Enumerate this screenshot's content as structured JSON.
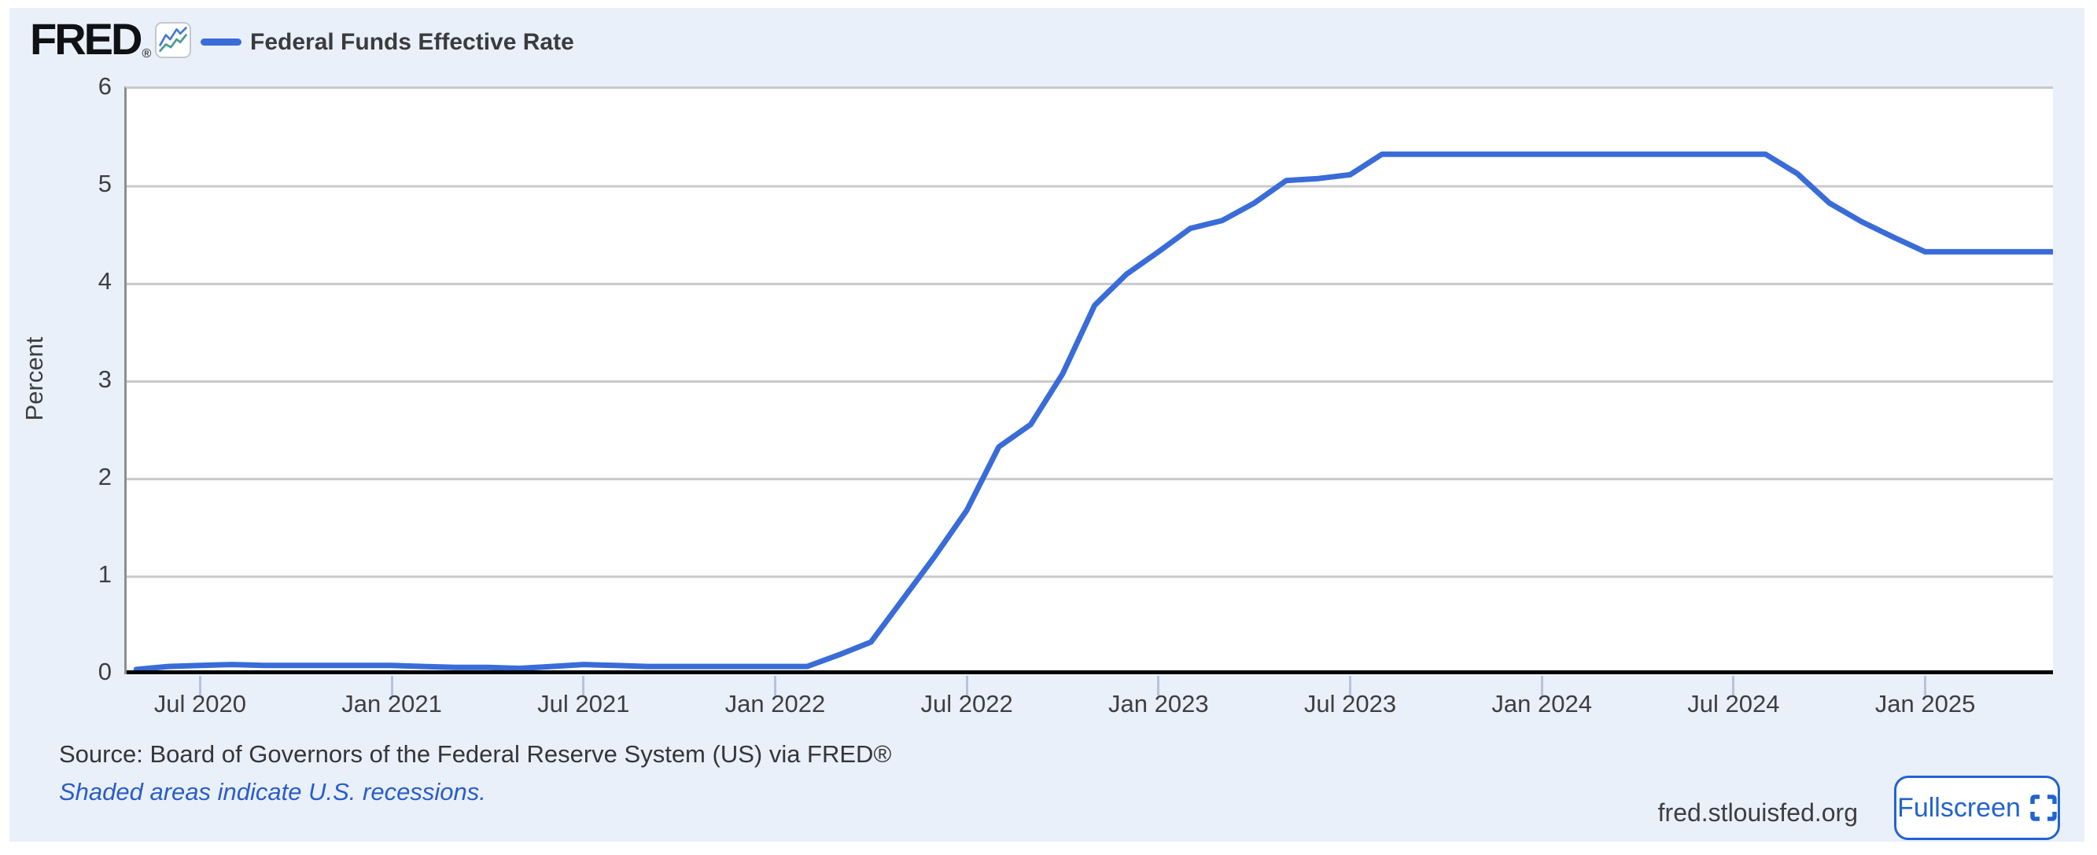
{
  "header": {
    "brand": "FRED",
    "brand_registered_mark": "®",
    "legend": {
      "series_label": "Federal Funds Effective Rate",
      "swatch_color": "#3a6cd8"
    },
    "fred_icon": {
      "blue": "#4a79d4",
      "teal": "#4d9b8f"
    }
  },
  "chart_data": {
    "type": "line",
    "title": "Federal Funds Effective Rate",
    "xlabel": "",
    "ylabel": "Percent",
    "ylim": [
      0,
      6
    ],
    "y_ticks": [
      0,
      1,
      2,
      3,
      4,
      5,
      6
    ],
    "grid": "horizontal",
    "legend_position": "top-left",
    "x_start_offset_months": 0.3,
    "x_ticks": [
      {
        "label": "Jul 2020",
        "month_index": 2
      },
      {
        "label": "Jan 2021",
        "month_index": 8
      },
      {
        "label": "Jul 2021",
        "month_index": 14
      },
      {
        "label": "Jan 2022",
        "month_index": 20
      },
      {
        "label": "Jul 2022",
        "month_index": 26
      },
      {
        "label": "Jan 2023",
        "month_index": 32
      },
      {
        "label": "Jul 2023",
        "month_index": 38
      },
      {
        "label": "Jan 2024",
        "month_index": 44
      },
      {
        "label": "Jul 2024",
        "month_index": 50
      },
      {
        "label": "Jan 2025",
        "month_index": 56
      }
    ],
    "series": [
      {
        "name": "Federal Funds Effective Rate",
        "color": "#3a6cd8",
        "x": [
          "2020-05",
          "2020-06",
          "2020-07",
          "2020-08",
          "2020-09",
          "2020-10",
          "2020-11",
          "2020-12",
          "2021-01",
          "2021-02",
          "2021-03",
          "2021-04",
          "2021-05",
          "2021-06",
          "2021-07",
          "2021-08",
          "2021-09",
          "2021-10",
          "2021-11",
          "2021-12",
          "2022-01",
          "2022-02",
          "2022-03",
          "2022-04",
          "2022-05",
          "2022-06",
          "2022-07",
          "2022-08",
          "2022-09",
          "2022-10",
          "2022-11",
          "2022-12",
          "2023-01",
          "2023-02",
          "2023-03",
          "2023-04",
          "2023-05",
          "2023-06",
          "2023-07",
          "2023-08",
          "2023-09",
          "2023-10",
          "2023-11",
          "2023-12",
          "2024-01",
          "2024-02",
          "2024-03",
          "2024-04",
          "2024-05",
          "2024-06",
          "2024-07",
          "2024-08",
          "2024-09",
          "2024-10",
          "2024-11",
          "2024-12",
          "2025-01",
          "2025-02",
          "2025-03",
          "2025-04",
          "2025-05"
        ],
        "values": [
          0.05,
          0.08,
          0.09,
          0.1,
          0.09,
          0.09,
          0.09,
          0.09,
          0.09,
          0.08,
          0.07,
          0.07,
          0.06,
          0.08,
          0.1,
          0.09,
          0.08,
          0.08,
          0.08,
          0.08,
          0.08,
          0.08,
          0.2,
          0.33,
          0.77,
          1.21,
          1.68,
          2.33,
          2.56,
          3.08,
          3.78,
          4.1,
          4.33,
          4.57,
          4.65,
          4.83,
          5.06,
          5.08,
          5.12,
          5.33,
          5.33,
          5.33,
          5.33,
          5.33,
          5.33,
          5.33,
          5.33,
          5.33,
          5.33,
          5.33,
          5.33,
          5.33,
          5.13,
          4.83,
          4.64,
          4.48,
          4.33,
          4.33,
          4.33,
          4.33,
          4.33
        ]
      }
    ]
  },
  "footer": {
    "source_text": "Source: Board of Governors of the Federal Reserve System (US) via FRED®",
    "recession_note": "Shaded areas indicate U.S. recessions.",
    "site": "fred.stlouisfed.org",
    "fullscreen_label": "Fullscreen"
  },
  "colors": {
    "panel_background": "#e9f0fa",
    "plot_background": "#ffffff",
    "gridline": "#c9c9c9",
    "y_axis_line": "#8d8d8d",
    "x_axis_line": "#000000",
    "tick_mark": "#b7c3da",
    "axis_text": "#3e3e41",
    "link_blue": "#2a5ccb",
    "accent_blue": "#2263cf",
    "series_blue": "#3a6cd8"
  }
}
